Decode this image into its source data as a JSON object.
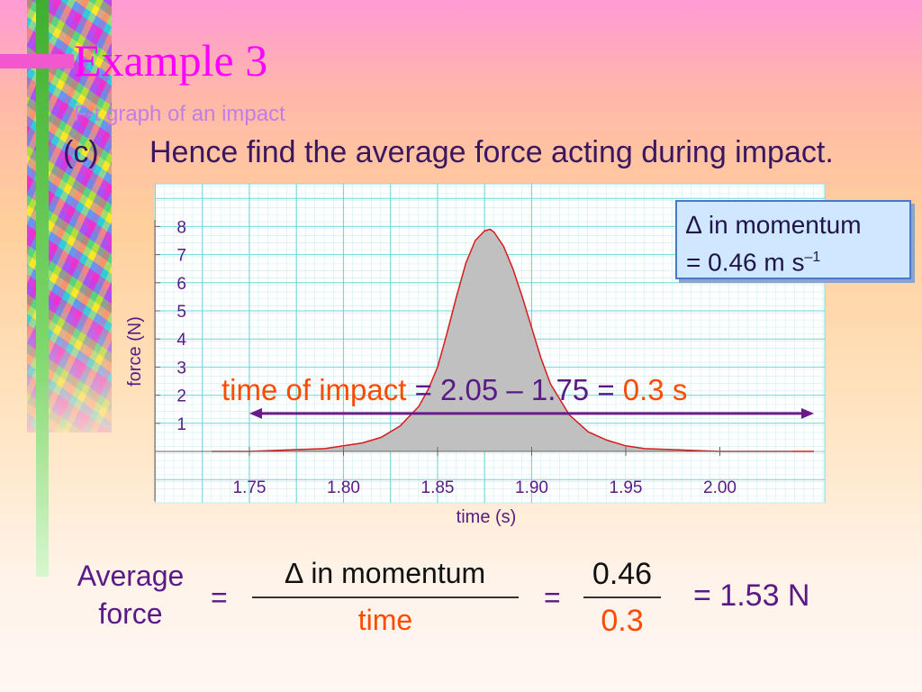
{
  "slide": {
    "title": "Example 3",
    "subtitle": "F-t graph of an impact",
    "part_label": "(c)",
    "question": "Hence find the average force acting during impact.",
    "callout": {
      "line1": "∆ in momentum",
      "line2_prefix": "= 0.46 m s",
      "line2_sup": "–1"
    },
    "time_of_impact": {
      "label": "time of impact",
      "expression": " = 2.05 – 1.75 = ",
      "value": "0.3 s"
    },
    "calculation": {
      "lhs": "Average force",
      "eq1": "=",
      "frac1_num": "∆ in momentum",
      "frac1_den": "time",
      "eq2": "=",
      "frac2_num": "0.46",
      "frac2_den": "0.3",
      "result": "= 1.53 N"
    },
    "colors": {
      "title": "#ff00ff",
      "text": "#5a1a86",
      "highlight": "#ff4a00",
      "curve": "#d81b1b",
      "fill": "#c0c0c0",
      "grid": "#6ed6de",
      "arrow": "#6a1a8a"
    }
  },
  "chart_data": {
    "type": "area",
    "xlabel": "time (s)",
    "ylabel": "force (N)",
    "xlim": [
      1.7,
      2.06
    ],
    "ylim": [
      0,
      8.5
    ],
    "x_ticks": [
      "1.75",
      "1.80",
      "1.85",
      "1.90",
      "1.95",
      "2.00"
    ],
    "y_ticks": [
      "1",
      "2",
      "3",
      "4",
      "5",
      "6",
      "7",
      "8"
    ],
    "grid": true,
    "series": [
      {
        "x": [
          1.73,
          1.75,
          1.77,
          1.79,
          1.8,
          1.81,
          1.82,
          1.83,
          1.84,
          1.845,
          1.85,
          1.855,
          1.86,
          1.865,
          1.87,
          1.875,
          1.878,
          1.88,
          1.885,
          1.89,
          1.895,
          1.9,
          1.905,
          1.91,
          1.92,
          1.93,
          1.94,
          1.95,
          1.96,
          1.98,
          2.0,
          2.03,
          2.05
        ],
        "y": [
          0.0,
          0.0,
          0.05,
          0.1,
          0.2,
          0.3,
          0.5,
          0.9,
          1.6,
          2.2,
          3.0,
          4.2,
          5.5,
          6.7,
          7.5,
          7.85,
          7.9,
          7.8,
          7.3,
          6.5,
          5.5,
          4.4,
          3.3,
          2.4,
          1.3,
          0.7,
          0.4,
          0.2,
          0.1,
          0.05,
          0.0,
          0.0,
          0.0
        ]
      }
    ],
    "annotation": {
      "arrow_from": 1.75,
      "arrow_to": 2.05,
      "arrow_y": 1.35
    }
  }
}
